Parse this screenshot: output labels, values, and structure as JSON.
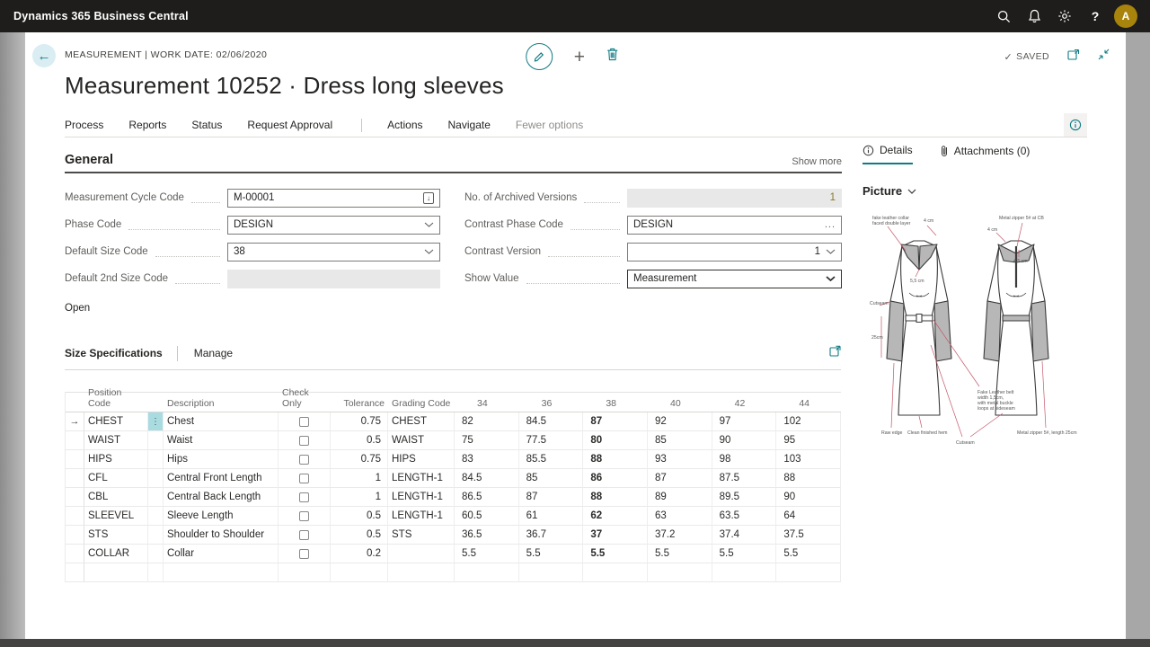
{
  "topbar": {
    "app_title": "Dynamics 365 Business Central",
    "avatar_initial": "A"
  },
  "header": {
    "breadcrumb": "MEASUREMENT | WORK DATE: 02/06/2020",
    "title": "Measurement 10252 · Dress long sleeves",
    "saved_label": "SAVED"
  },
  "ribbon": {
    "items": [
      "Process",
      "Reports",
      "Status",
      "Request Approval",
      "Actions",
      "Navigate",
      "Fewer options"
    ]
  },
  "general": {
    "heading": "General",
    "show_more_label": "Show more",
    "status_text": "Open",
    "left_fields": [
      {
        "label": "Measurement Cycle Code",
        "value": "M-00001",
        "control": "lookup"
      },
      {
        "label": "Phase Code",
        "value": "DESIGN",
        "control": "chevron"
      },
      {
        "label": "Default Size Code",
        "value": "38",
        "control": "chevron"
      },
      {
        "label": "Default 2nd Size Code",
        "value": "",
        "control": "disabled"
      }
    ],
    "right_fields": [
      {
        "label": "No. of Archived Versions",
        "value": "1",
        "control": "disabled-value"
      },
      {
        "label": "Contrast Phase Code",
        "value": "DESIGN",
        "control": "ellipsis"
      },
      {
        "label": "Contrast Version",
        "value": "1",
        "control": "value-chevron"
      },
      {
        "label": "Show Value",
        "value": "Measurement",
        "control": "select"
      }
    ]
  },
  "size_specifications": {
    "heading": "Size Specifications",
    "manage_label": "Manage",
    "columns": [
      "Position Code",
      "Description",
      "Check Only",
      "Tolerance",
      "Grading Code"
    ],
    "size_columns": [
      "34",
      "36",
      "38",
      "40",
      "42",
      "44"
    ],
    "bold_size_column": "38",
    "rows": [
      {
        "position_code": "CHEST",
        "description": "Chest",
        "check_only": false,
        "tolerance": "0.75",
        "grading_code": "CHEST",
        "sizes": [
          "82",
          "84.5",
          "87",
          "92",
          "97",
          "102"
        ],
        "current": true
      },
      {
        "position_code": "WAIST",
        "description": "Waist",
        "check_only": false,
        "tolerance": "0.5",
        "grading_code": "WAIST",
        "sizes": [
          "75",
          "77.5",
          "80",
          "85",
          "90",
          "95"
        ]
      },
      {
        "position_code": "HIPS",
        "description": "Hips",
        "check_only": false,
        "tolerance": "0.75",
        "grading_code": "HIPS",
        "sizes": [
          "83",
          "85.5",
          "88",
          "93",
          "98",
          "103"
        ]
      },
      {
        "position_code": "CFL",
        "description": "Central Front Length",
        "check_only": false,
        "tolerance": "1",
        "grading_code": "LENGTH-1",
        "sizes": [
          "84.5",
          "85",
          "86",
          "87",
          "87.5",
          "88"
        ]
      },
      {
        "position_code": "CBL",
        "description": "Central Back Length",
        "check_only": false,
        "tolerance": "1",
        "grading_code": "LENGTH-1",
        "sizes": [
          "86.5",
          "87",
          "88",
          "89",
          "89.5",
          "90"
        ]
      },
      {
        "position_code": "SLEEVEL",
        "description": "Sleeve Length",
        "check_only": false,
        "tolerance": "0.5",
        "grading_code": "LENGTH-1",
        "sizes": [
          "60.5",
          "61",
          "62",
          "63",
          "63.5",
          "64"
        ]
      },
      {
        "position_code": "STS",
        "description": "Shoulder to Shoulder",
        "check_only": false,
        "tolerance": "0.5",
        "grading_code": "STS",
        "sizes": [
          "36.5",
          "36.7",
          "37",
          "37.2",
          "37.4",
          "37.5"
        ]
      },
      {
        "position_code": "COLLAR",
        "description": "Collar",
        "check_only": false,
        "tolerance": "0.2",
        "grading_code": "",
        "sizes": [
          "5.5",
          "5.5",
          "5.5",
          "5.5",
          "5.5",
          "5.5"
        ]
      },
      {
        "position_code": "",
        "description": "",
        "check_only": null,
        "tolerance": "",
        "grading_code": "",
        "sizes": [
          "",
          "",
          "",
          "",
          "",
          ""
        ],
        "empty": true
      }
    ]
  },
  "factbox": {
    "details_tab": "Details",
    "attachments_tab": "Attachments (0)",
    "picture_heading": "Picture"
  },
  "drawing": {
    "annotations": [
      "fake leather collar",
      "faced double layer",
      "4 cm",
      "5,5 cm",
      "Metal zipper 5# at CB",
      "4 cm",
      "4,5 cm",
      "Cutseam",
      "25cm",
      "Raw edge",
      "Clean finished hem",
      "Cutseam",
      "Fake Leather belt",
      "width 1,5cm,",
      "with metal buckle",
      "loops at sideseam",
      "Metal zipper 5#, length 25cm"
    ]
  },
  "colors": {
    "accent_teal": "#0f7b83",
    "topbar_bg": "#1e1d1b",
    "avatar_bg": "#a8840c",
    "annotation_red": "#c4586a",
    "archived_value": "#867a22",
    "selected_menu_chip": "#a9dce1"
  }
}
